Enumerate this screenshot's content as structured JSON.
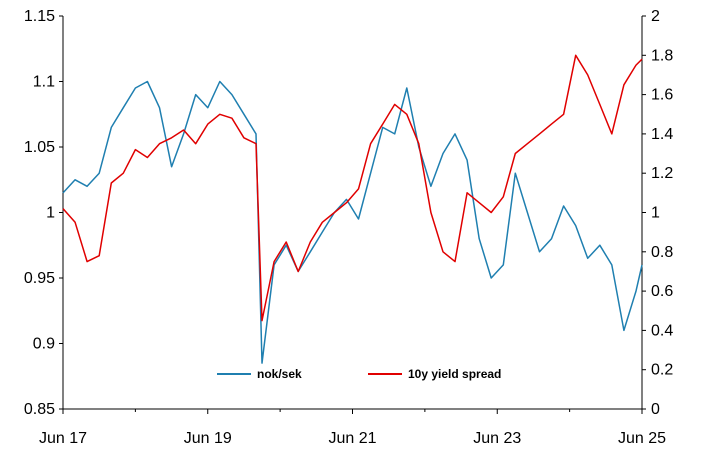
{
  "chart_data": {
    "type": "line",
    "title": "",
    "xlabel": "",
    "ylabel": "",
    "x_ticks": [
      "Jun 17",
      "Jun 19",
      "Jun 21",
      "Jun 23",
      "Jun 25"
    ],
    "x_range": [
      "2017-06",
      "2025-06"
    ],
    "y_left": {
      "range": [
        0.85,
        1.15
      ],
      "ticks": [
        "0.85",
        "0.9",
        "0.95",
        "1",
        "1.05",
        "1.1",
        "1.15"
      ]
    },
    "y_right": {
      "range": [
        0,
        2
      ],
      "ticks": [
        "0",
        "0.2",
        "0.4",
        "0.6",
        "0.8",
        "1",
        "1.2",
        "1.4",
        "1.6",
        "1.8",
        "2"
      ]
    },
    "grid": false,
    "legend_position": "bottom-center inside plot",
    "series": [
      {
        "name": "nok/sek",
        "axis": "left",
        "color": "#1f7fb0",
        "x": [
          "2017-06",
          "2017-08",
          "2017-10",
          "2017-12",
          "2018-02",
          "2018-04",
          "2018-06",
          "2018-08",
          "2018-10",
          "2018-12",
          "2019-02",
          "2019-04",
          "2019-06",
          "2019-08",
          "2019-10",
          "2019-12",
          "2020-02",
          "2020-03",
          "2020-05",
          "2020-07",
          "2020-09",
          "2020-11",
          "2021-01",
          "2021-03",
          "2021-05",
          "2021-07",
          "2021-09",
          "2021-11",
          "2022-01",
          "2022-03",
          "2022-05",
          "2022-07",
          "2022-09",
          "2022-11",
          "2023-01",
          "2023-03",
          "2023-05",
          "2023-07",
          "2023-09",
          "2023-11",
          "2024-01",
          "2024-03",
          "2024-05",
          "2024-07",
          "2024-09",
          "2024-11",
          "2025-01",
          "2025-03",
          "2025-05",
          "2025-06"
        ],
        "values": [
          1.015,
          1.025,
          1.02,
          1.03,
          1.065,
          1.08,
          1.095,
          1.1,
          1.08,
          1.035,
          1.06,
          1.09,
          1.08,
          1.1,
          1.09,
          1.075,
          1.06,
          0.885,
          0.96,
          0.975,
          0.955,
          0.97,
          0.985,
          1.0,
          1.01,
          0.995,
          1.03,
          1.065,
          1.06,
          1.095,
          1.05,
          1.02,
          1.045,
          1.06,
          1.04,
          0.98,
          0.95,
          0.96,
          1.03,
          1.0,
          0.97,
          0.98,
          1.005,
          0.99,
          0.965,
          0.975,
          0.96,
          0.91,
          0.94,
          0.96
        ]
      },
      {
        "name": "10y yield spread",
        "axis": "right",
        "color": "#e00000",
        "x": [
          "2017-06",
          "2017-08",
          "2017-10",
          "2017-12",
          "2018-02",
          "2018-04",
          "2018-06",
          "2018-08",
          "2018-10",
          "2018-12",
          "2019-02",
          "2019-04",
          "2019-06",
          "2019-08",
          "2019-10",
          "2019-12",
          "2020-02",
          "2020-03",
          "2020-05",
          "2020-07",
          "2020-09",
          "2020-11",
          "2021-01",
          "2021-03",
          "2021-05",
          "2021-07",
          "2021-09",
          "2021-11",
          "2022-01",
          "2022-03",
          "2022-05",
          "2022-07",
          "2022-09",
          "2022-11",
          "2023-01",
          "2023-03",
          "2023-05",
          "2023-07",
          "2023-09",
          "2023-11",
          "2024-01",
          "2024-03",
          "2024-05",
          "2024-07",
          "2024-09",
          "2024-11",
          "2025-01",
          "2025-03",
          "2025-05",
          "2025-06"
        ],
        "values": [
          1.02,
          0.95,
          0.75,
          0.78,
          1.15,
          1.2,
          1.32,
          1.28,
          1.35,
          1.38,
          1.42,
          1.35,
          1.45,
          1.5,
          1.48,
          1.38,
          1.35,
          0.45,
          0.75,
          0.85,
          0.7,
          0.85,
          0.95,
          1.0,
          1.05,
          1.12,
          1.35,
          1.45,
          1.55,
          1.5,
          1.35,
          1.0,
          0.8,
          0.75,
          1.1,
          1.05,
          1.0,
          1.08,
          1.3,
          1.35,
          1.4,
          1.45,
          1.5,
          1.8,
          1.7,
          1.55,
          1.4,
          1.65,
          1.75,
          1.78
        ]
      }
    ]
  }
}
